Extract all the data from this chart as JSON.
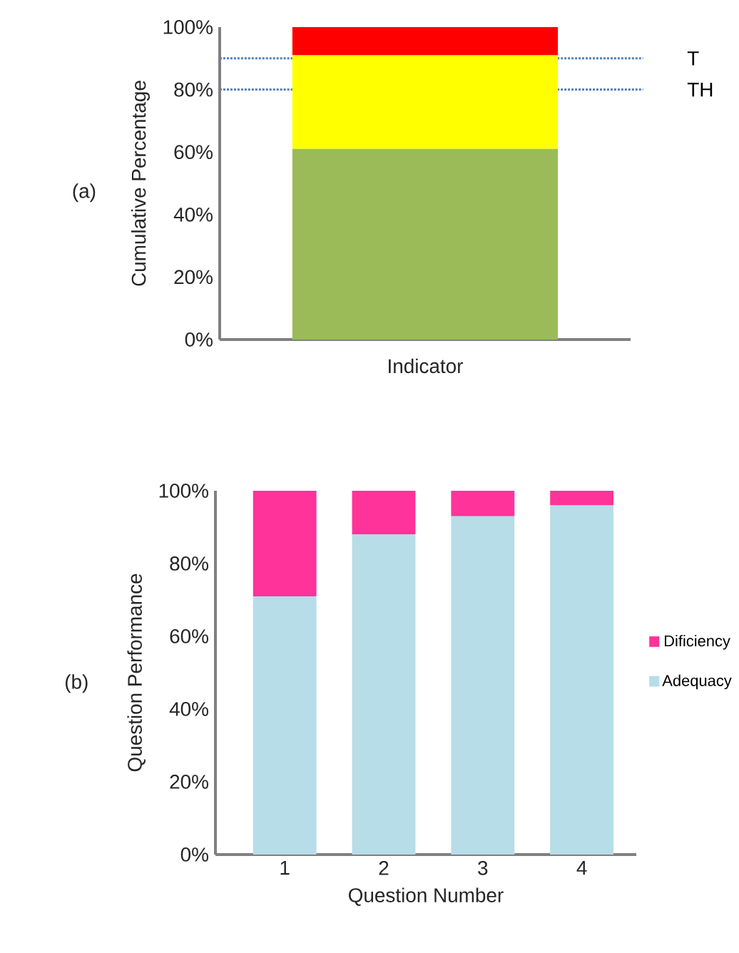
{
  "chart_data": [
    {
      "type": "bar",
      "title": "(a)",
      "xlabel": "Indicator",
      "ylabel": "Cumulative Percentage",
      "categories": [
        null
      ],
      "stacked": true,
      "series": [
        {
          "color": "#9bbb59",
          "values": [
            61
          ]
        },
        {
          "color": "#ffff00",
          "values": [
            30
          ]
        },
        {
          "color": "#ff0000",
          "values": [
            9
          ]
        }
      ],
      "ylim": [
        0,
        100
      ],
      "yticks": [
        {
          "value": 0,
          "label": "0%"
        },
        {
          "value": 20,
          "label": "20%"
        },
        {
          "value": 40,
          "label": "40%"
        },
        {
          "value": 60,
          "label": "60%"
        },
        {
          "value": 80,
          "label": "80%"
        },
        {
          "value": 100,
          "label": "100%"
        }
      ],
      "ref_lines": [
        {
          "axis": "y",
          "value": 90,
          "label": "T",
          "color": "#4f81bd",
          "line_style": "dotted"
        },
        {
          "axis": "y",
          "value": 80,
          "label": "TH",
          "color": "#4f81bd",
          "line_style": "dotted"
        }
      ],
      "legend": false,
      "grid": false
    },
    {
      "type": "bar",
      "title": "(b)",
      "xlabel": "Question Number",
      "ylabel": "Question Performance",
      "categories": [
        "1",
        "2",
        "3",
        "4"
      ],
      "stacked": true,
      "series": [
        {
          "name": "Adequacy",
          "color": "#b7dde8",
          "values": [
            71,
            88,
            93,
            96
          ]
        },
        {
          "name": "Dificiency",
          "color": "#ff3399",
          "values": [
            29,
            12,
            7,
            4
          ]
        }
      ],
      "ylim": [
        0,
        100
      ],
      "yticks": [
        {
          "value": 0,
          "label": "0%"
        },
        {
          "value": 20,
          "label": "20%"
        },
        {
          "value": 40,
          "label": "40%"
        },
        {
          "value": 60,
          "label": "60%"
        },
        {
          "value": 80,
          "label": "80%"
        },
        {
          "value": 100,
          "label": "100%"
        }
      ],
      "legend": "right",
      "grid": false
    }
  ]
}
